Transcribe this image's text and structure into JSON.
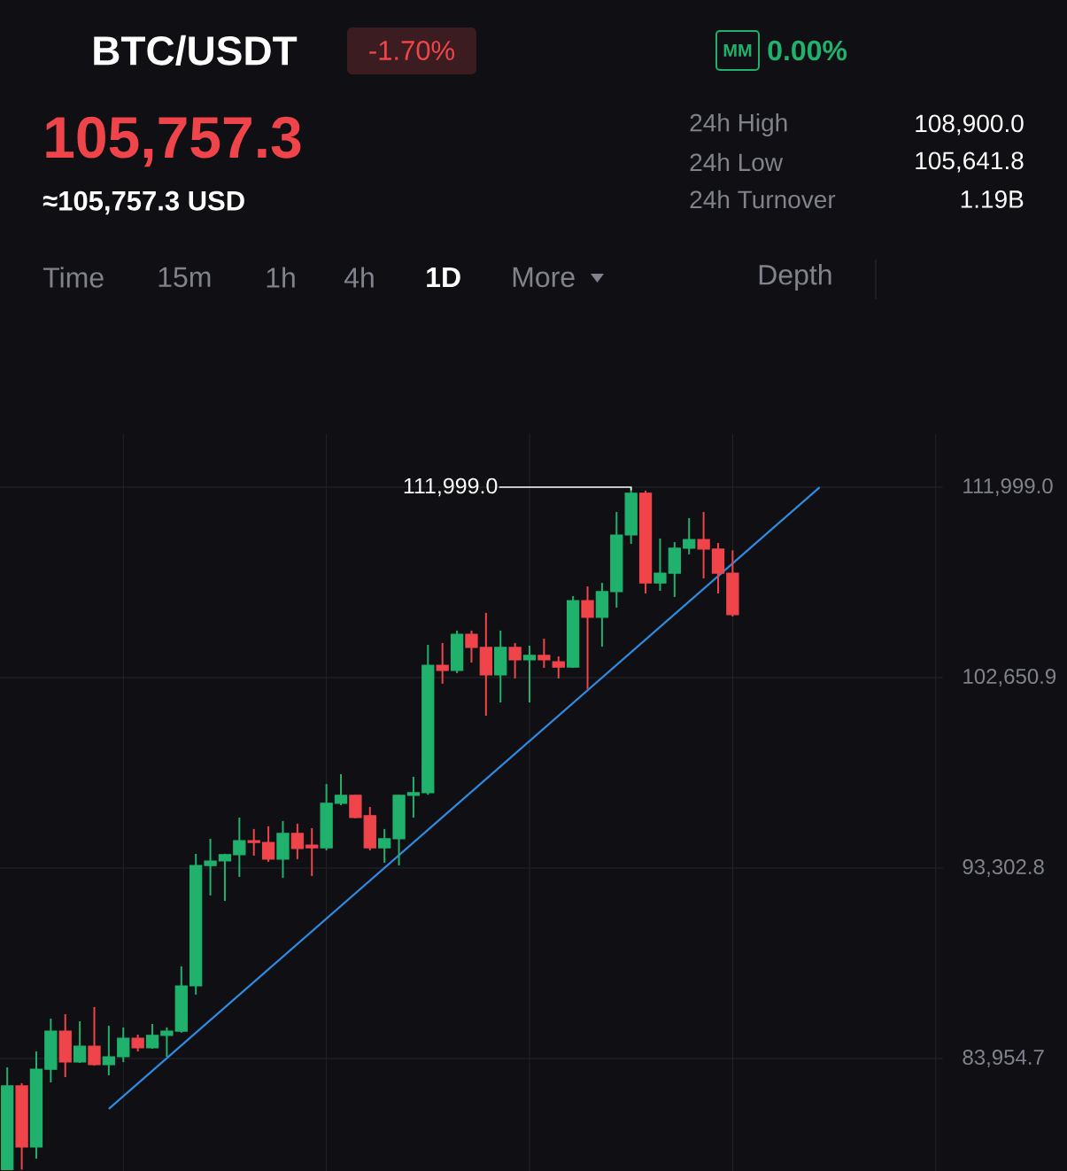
{
  "chart_data": {
    "type": "candlestick",
    "title": "BTC/USDT",
    "annotations": [
      "-1.70%",
      "MM",
      "0.00%",
      "105,757.3",
      "≈105,757.3 USD",
      "24h High",
      "108,900.0",
      "24h Low",
      "105,641.8",
      "24h Turnover",
      "1.19B",
      "Time",
      "15m",
      "1h",
      "4h",
      "1D",
      "More",
      "Depth",
      "111,999.0"
    ],
    "categories": [
      null,
      null,
      null,
      null,
      null,
      null,
      null,
      null,
      null,
      null,
      null,
      null,
      null,
      null,
      null,
      null,
      null,
      null,
      null,
      null,
      null,
      null,
      null,
      null,
      null,
      null,
      null,
      null,
      null,
      null,
      null,
      null,
      null,
      null,
      null,
      null,
      null,
      null,
      null,
      null,
      null,
      null,
      null,
      null,
      null,
      null,
      null,
      null,
      null,
      null,
      null,
      null,
      null,
      null,
      null,
      null,
      null,
      null,
      null,
      null,
      null,
      null,
      null,
      null,
      null
    ],
    "ohlc": [
      [
        78500,
        83520,
        78500,
        82610
      ],
      [
        82610,
        82740,
        78500,
        79610
      ],
      [
        79610,
        84300,
        79040,
        83430
      ],
      [
        83430,
        85910,
        82780,
        85300
      ],
      [
        85300,
        86130,
        83040,
        83780
      ],
      [
        83780,
        85780,
        83740,
        84560
      ],
      [
        84560,
        86480,
        83610,
        83650
      ],
      [
        83650,
        85560,
        83130,
        84040
      ],
      [
        84040,
        85480,
        83780,
        84950
      ],
      [
        84950,
        85130,
        84300,
        84480
      ],
      [
        84480,
        85650,
        84430,
        85090
      ],
      [
        85090,
        85480,
        84040,
        85300
      ],
      [
        85300,
        88480,
        85220,
        87520
      ],
      [
        87520,
        94000,
        87090,
        93430
      ],
      [
        93430,
        94740,
        91960,
        93650
      ],
      [
        93650,
        94000,
        91690,
        93960
      ],
      [
        93960,
        95780,
        92870,
        94650
      ],
      [
        94650,
        95220,
        93910,
        94560
      ],
      [
        94560,
        95350,
        93610,
        93740
      ],
      [
        93740,
        95610,
        92820,
        95000
      ],
      [
        95000,
        95480,
        93740,
        94260
      ],
      [
        94430,
        95260,
        92910,
        94300
      ],
      [
        94300,
        97430,
        94170,
        96480
      ],
      [
        96480,
        97910,
        96390,
        96870
      ],
      [
        96870,
        96900,
        95740,
        95780
      ],
      [
        95870,
        96300,
        94170,
        94300
      ],
      [
        94300,
        95220,
        93560,
        94740
      ],
      [
        94740,
        96900,
        93430,
        96870
      ],
      [
        96870,
        97780,
        95780,
        97000
      ],
      [
        97000,
        104260,
        96900,
        103260
      ],
      [
        103260,
        104350,
        102350,
        103000
      ],
      [
        103000,
        104960,
        102870,
        104780
      ],
      [
        104780,
        104960,
        103390,
        104130
      ],
      [
        104130,
        105830,
        100780,
        102780
      ],
      [
        102780,
        104960,
        101430,
        104130
      ],
      [
        104130,
        104350,
        102610,
        103520
      ],
      [
        103520,
        104220,
        101430,
        103740
      ],
      [
        103740,
        104560,
        103130,
        103520
      ],
      [
        103430,
        103690,
        102610,
        103170
      ],
      [
        103170,
        106650,
        103130,
        106430
      ],
      [
        106430,
        107130,
        102090,
        105610
      ],
      [
        105610,
        107300,
        104170,
        106870
      ],
      [
        106870,
        110780,
        106090,
        109650
      ],
      [
        109650,
        111999,
        109220,
        111700
      ],
      [
        111700,
        111830,
        106780,
        107300
      ],
      [
        107300,
        109480,
        106910,
        107780
      ],
      [
        107780,
        109300,
        106610,
        109000
      ],
      [
        109000,
        110480,
        108700,
        109430
      ],
      [
        109430,
        110780,
        107520,
        108960
      ],
      [
        108960,
        109260,
        106780,
        107780
      ],
      [
        107780,
        108900,
        105650,
        105740
      ],
      null,
      null,
      null,
      null,
      null,
      null,
      null,
      null,
      null,
      null,
      null,
      null,
      null,
      null
    ],
    "colors": [
      "#20b26c",
      "#ef454a",
      "#20b26c",
      "#20b26c",
      "#ef454a",
      "#20b26c",
      "#ef454a",
      "#20b26c",
      "#20b26c",
      "#ef454a",
      "#20b26c",
      "#20b26c",
      "#20b26c",
      "#20b26c",
      "#20b26c",
      "#20b26c",
      "#20b26c",
      "#ef454a",
      "#ef454a",
      "#20b26c",
      "#ef454a",
      "#ef454a",
      "#20b26c",
      "#20b26c",
      "#ef454a",
      "#ef454a",
      "#20b26c",
      "#20b26c",
      "#20b26c",
      "#20b26c",
      "#ef454a",
      "#20b26c",
      "#ef454a",
      "#ef454a",
      "#20b26c",
      "#ef454a",
      "#20b26c",
      "#ef454a",
      "#ef454a",
      "#20b26c",
      "#ef454a",
      "#20b26c",
      "#20b26c",
      "#20b26c",
      "#ef454a",
      "#20b26c",
      "#20b26c",
      "#20b26c",
      "#ef454a",
      "#ef454a",
      "#ef454a",
      null,
      null,
      null,
      null,
      null,
      null,
      null,
      null,
      null,
      null,
      null,
      null,
      null,
      null
    ],
    "series": [
      {
        "type": "line",
        "values": [
          null,
          null,
          null,
          null,
          null,
          null,
          null,
          81480,
          null,
          null,
          null,
          null,
          null,
          null,
          null,
          null,
          null,
          null,
          null,
          null,
          null,
          null,
          null,
          null,
          null,
          null,
          null,
          null,
          null,
          null,
          null,
          null,
          null,
          null,
          null,
          null,
          null,
          null,
          null,
          null,
          null,
          null,
          null,
          null,
          null,
          null,
          null,
          null,
          null,
          null,
          null,
          null,
          null,
          null,
          null,
          null,
          111990,
          null,
          null,
          null,
          null,
          null,
          null,
          null,
          null
        ],
        "color": "#2f8ae0"
      }
    ],
    "ylim": [
      78432,
      114608
    ],
    "yticks": [
      {
        "value": 83954.7,
        "label": "83,954.7"
      },
      {
        "value": 93302.8,
        "label": "93,302.8"
      },
      {
        "value": 102650.9,
        "label": "102,650.9"
      },
      {
        "value": 111999,
        "label": "111,999.0"
      }
    ],
    "grid": true
  }
}
